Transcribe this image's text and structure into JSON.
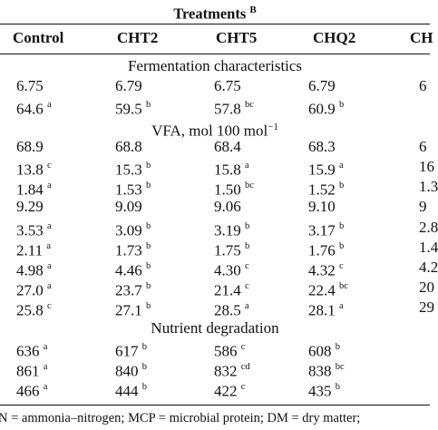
{
  "title": {
    "text": "Treatments",
    "sup": "B"
  },
  "columns": [
    "Control",
    "CHT2",
    "CHT5",
    "CHQ2",
    "CH"
  ],
  "sections": [
    {
      "label": "Fermentation characteristics",
      "label_sup": "",
      "rows": [
        [
          {
            "v": "6.75",
            "s": ""
          },
          {
            "v": "6.79",
            "s": ""
          },
          {
            "v": "6.75",
            "s": ""
          },
          {
            "v": "6.79",
            "s": ""
          },
          {
            "v": "6",
            "s": ""
          }
        ],
        [
          {
            "v": "64.6",
            "s": "a"
          },
          {
            "v": "59.5",
            "s": "b"
          },
          {
            "v": "57.8",
            "s": "bc"
          },
          {
            "v": "60.9",
            "s": "b"
          },
          {
            "v": "",
            "s": ""
          }
        ]
      ]
    },
    {
      "label": "VFA, mol 100 mol",
      "label_sup": "−1",
      "rows": [
        [
          {
            "v": "68.9",
            "s": ""
          },
          {
            "v": "68.8",
            "s": ""
          },
          {
            "v": "68.4",
            "s": ""
          },
          {
            "v": "68.3",
            "s": ""
          },
          {
            "v": "6",
            "s": ""
          }
        ],
        [
          {
            "v": "13.8",
            "s": "c"
          },
          {
            "v": "15.3",
            "s": "b"
          },
          {
            "v": "15.8",
            "s": "a"
          },
          {
            "v": "15.9",
            "s": "a"
          },
          {
            "v": "16",
            "s": ""
          }
        ],
        [
          {
            "v": "1.84",
            "s": "a"
          },
          {
            "v": "1.53",
            "s": "b"
          },
          {
            "v": "1.50",
            "s": "bc"
          },
          {
            "v": "1.52",
            "s": "b"
          },
          {
            "v": "1.3",
            "s": ""
          }
        ],
        [
          {
            "v": "9.29",
            "s": ""
          },
          {
            "v": "9.09",
            "s": ""
          },
          {
            "v": "9.06",
            "s": ""
          },
          {
            "v": "9.10",
            "s": ""
          },
          {
            "v": "9",
            "s": ""
          }
        ],
        [
          {
            "v": "3.53",
            "s": "a"
          },
          {
            "v": "3.09",
            "s": "b"
          },
          {
            "v": "3.19",
            "s": "b"
          },
          {
            "v": "3.17",
            "s": "b"
          },
          {
            "v": "2.8",
            "s": ""
          }
        ],
        [
          {
            "v": "2.11",
            "s": "a"
          },
          {
            "v": "1.73",
            "s": "b"
          },
          {
            "v": "1.75",
            "s": "b"
          },
          {
            "v": "1.76",
            "s": "b"
          },
          {
            "v": "1.4",
            "s": ""
          }
        ],
        [
          {
            "v": "4.98",
            "s": "a"
          },
          {
            "v": "4.46",
            "s": "b"
          },
          {
            "v": "4.30",
            "s": "c"
          },
          {
            "v": "4.32",
            "s": "c"
          },
          {
            "v": "4.2",
            "s": ""
          }
        ],
        [
          {
            "v": "27.0",
            "s": "a"
          },
          {
            "v": "23.7",
            "s": "b"
          },
          {
            "v": "21.4",
            "s": "c"
          },
          {
            "v": "22.4",
            "s": "bc"
          },
          {
            "v": "20",
            "s": ""
          }
        ],
        [
          {
            "v": "25.8",
            "s": "c"
          },
          {
            "v": "27.1",
            "s": "b"
          },
          {
            "v": "28.5",
            "s": "a"
          },
          {
            "v": "28.1",
            "s": "a"
          },
          {
            "v": "29",
            "s": ""
          }
        ]
      ]
    },
    {
      "label": "Nutrient degradation",
      "label_sup": "",
      "rows": [
        [
          {
            "v": "636",
            "s": "a"
          },
          {
            "v": "617",
            "s": "b"
          },
          {
            "v": "586",
            "s": "c"
          },
          {
            "v": "608",
            "s": "b"
          },
          {
            "v": "",
            "s": ""
          }
        ],
        [
          {
            "v": "861",
            "s": "a"
          },
          {
            "v": "840",
            "s": "b"
          },
          {
            "v": "832",
            "s": "cd"
          },
          {
            "v": "838",
            "s": "bc"
          },
          {
            "v": "",
            "s": ""
          }
        ],
        [
          {
            "v": "466",
            "s": "a"
          },
          {
            "v": "444",
            "s": "b"
          },
          {
            "v": "422",
            "s": "c"
          },
          {
            "v": "435",
            "s": "b"
          },
          {
            "v": "",
            "s": ""
          }
        ]
      ]
    }
  ],
  "footnote": "N = ammonia–nitrogen; MCP = microbial protein; DM = dry matter;"
}
